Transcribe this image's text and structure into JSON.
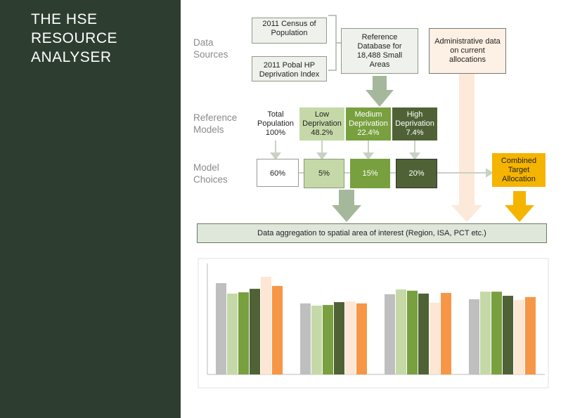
{
  "title": "THE HSE RESOURCE ANALYSER",
  "row_labels": [
    "Data Sources",
    "Reference Models",
    "Model Choices"
  ],
  "sources": [
    "2011 Census of Population",
    "2011 Pobal HP Deprivation Index"
  ],
  "reference_database": "Reference Database for 18,488 Small Areas",
  "admin_data": "Administrative data on current allocations",
  "reference_models": [
    {
      "label": "Total Population",
      "value": "100%"
    },
    {
      "label": "Low Deprivation",
      "value": "48.2%"
    },
    {
      "label": "Medium Deprivation",
      "value": "22.4%"
    },
    {
      "label": "High Deprivation",
      "value": "7.4%"
    }
  ],
  "model_choices": [
    "60%",
    "5%",
    "15%",
    "20%"
  ],
  "combined": "Combined Target Allocation",
  "aggregation": "Data aggregation to spatial area of interest (Region, ISA, PCT etc.)",
  "chart": {
    "type": "bar",
    "ylim": [
      0,
      35
    ],
    "series": [
      {
        "color": "#bfbfbf",
        "values": [
          28.8,
          22.4,
          25.3,
          23.7
        ]
      },
      {
        "color": "#c5d9a8",
        "values": [
          25.5,
          21.7,
          26.8,
          26.1
        ]
      },
      {
        "color": "#78a03f",
        "values": [
          25.9,
          21.9,
          26.4,
          26.1
        ]
      },
      {
        "color": "#4f6236",
        "values": [
          27.0,
          22.8,
          25.5,
          24.8
        ]
      },
      {
        "color": "#fde6d3",
        "values": [
          30.8,
          23.0,
          22.6,
          23.5
        ]
      },
      {
        "color": "#f79646",
        "values": [
          27.9,
          22.4,
          25.7,
          24.4
        ]
      }
    ]
  }
}
